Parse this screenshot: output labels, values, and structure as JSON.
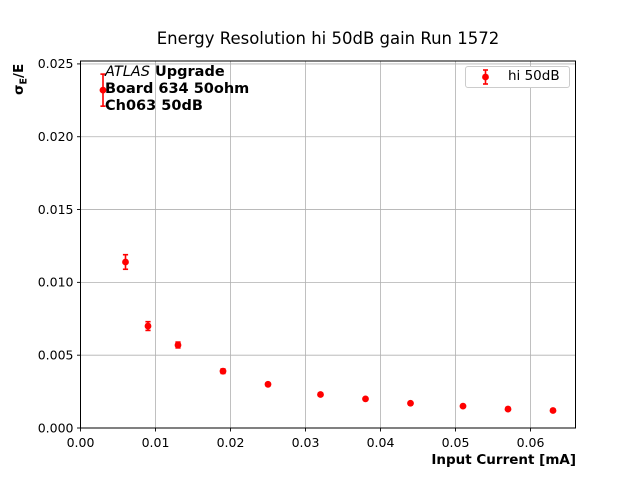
{
  "figure": {
    "title": "Energy Resolution hi 50dB gain Run 1572"
  },
  "axes": {
    "xlabel": "Input Current [mA]",
    "ylabel": {
      "base": "σ",
      "sub": "E",
      "rest": "/E"
    }
  },
  "legend": {
    "label": "hi 50dB",
    "marker": "red-errorbar-point"
  },
  "annotation": {
    "line1_italic": "ATLAS",
    "line1_bold": " Upgrade",
    "line2": "Board 634 50ohm",
    "line3": "Ch063 50dB"
  },
  "colors": {
    "series": "#ff0000",
    "grid": "#b0b0b0",
    "spine": "#000000",
    "legend_border": "#cccccc",
    "background": "#ffffff",
    "text": "#000000"
  },
  "chart_data": {
    "type": "scatter",
    "title": "Energy Resolution hi 50dB gain Run 1572",
    "xlabel": "Input Current [mA]",
    "ylabel": "σE/E",
    "xlim": [
      0.0,
      0.066
    ],
    "ylim": [
      0.0,
      0.0252
    ],
    "grid": true,
    "legend_position": "upper right",
    "xticks": {
      "values": [
        0.0,
        0.01,
        0.02,
        0.03,
        0.04,
        0.05,
        0.06
      ],
      "labels": [
        "0.00",
        "0.01",
        "0.02",
        "0.03",
        "0.04",
        "0.05",
        "0.06"
      ]
    },
    "yticks": {
      "values": [
        0.0,
        0.005,
        0.01,
        0.015,
        0.02,
        0.025
      ],
      "labels": [
        "0.000",
        "0.005",
        "0.010",
        "0.015",
        "0.020",
        "0.025"
      ]
    },
    "series": [
      {
        "name": "hi 50dB",
        "color": "#ff0000",
        "marker": "o",
        "points": [
          {
            "x": 0.003,
            "y": 0.0232,
            "yerr": 0.0011
          },
          {
            "x": 0.006,
            "y": 0.0114,
            "yerr": 0.0005
          },
          {
            "x": 0.009,
            "y": 0.007,
            "yerr": 0.0003
          },
          {
            "x": 0.013,
            "y": 0.0057,
            "yerr": 0.0002
          },
          {
            "x": 0.019,
            "y": 0.0039,
            "yerr": 0.00015
          },
          {
            "x": 0.025,
            "y": 0.003,
            "yerr": 0.0001
          },
          {
            "x": 0.032,
            "y": 0.0023,
            "yerr": 8e-05
          },
          {
            "x": 0.038,
            "y": 0.002,
            "yerr": 7e-05
          },
          {
            "x": 0.044,
            "y": 0.0017,
            "yerr": 6e-05
          },
          {
            "x": 0.051,
            "y": 0.0015,
            "yerr": 5e-05
          },
          {
            "x": 0.057,
            "y": 0.0013,
            "yerr": 5e-05
          },
          {
            "x": 0.063,
            "y": 0.0012,
            "yerr": 4e-05
          }
        ]
      }
    ]
  }
}
